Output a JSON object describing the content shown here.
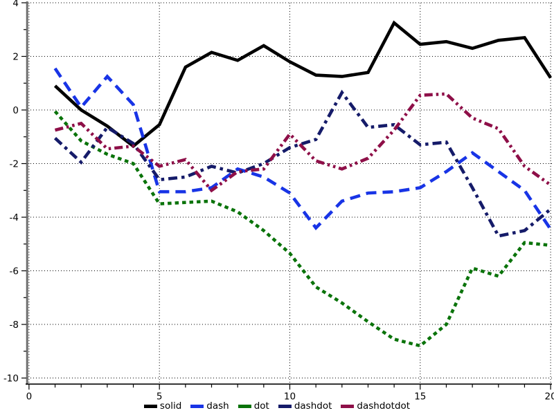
{
  "chart_data": {
    "type": "line",
    "title": "",
    "xlabel": "",
    "ylabel": "",
    "xlim": [
      -0.05,
      20.05
    ],
    "ylim": [
      -10.2,
      4.0
    ],
    "x_major_ticks": [
      0,
      5,
      10,
      15,
      20
    ],
    "x_minor_ticks": [
      1,
      2,
      3,
      4,
      6,
      7,
      8,
      9,
      11,
      12,
      13,
      14,
      16,
      17,
      18,
      19
    ],
    "y_major_ticks": [
      4,
      2,
      0,
      -2,
      -4,
      -6,
      -8,
      -10
    ],
    "y_minor_ticks": [
      3,
      1,
      -1,
      -3,
      -5,
      -7,
      -9
    ],
    "grid": "dotted lines at major ticks",
    "legend_position": "bottom-center",
    "axis_colors": {
      "y_axis_line": "#6e6e6e",
      "x_axis_line": "#000000",
      "grid": "#000000"
    },
    "x": [
      1,
      2,
      3,
      4,
      5,
      6,
      7,
      8,
      9,
      10,
      11,
      12,
      13,
      14,
      15,
      16,
      17,
      18,
      19,
      20
    ],
    "series": [
      {
        "name": "solid",
        "color": "#000000",
        "dash": "solid",
        "values": [
          0.9,
          0.0,
          -0.6,
          -1.35,
          -0.55,
          1.6,
          2.15,
          1.85,
          2.4,
          1.8,
          1.3,
          1.25,
          1.4,
          3.25,
          2.45,
          2.55,
          2.3,
          2.6,
          2.7,
          1.2
        ]
      },
      {
        "name": "dash",
        "color": "#1834e6",
        "dash": "dash",
        "values": [
          1.55,
          0.1,
          1.25,
          0.2,
          -3.05,
          -3.05,
          -2.9,
          -2.2,
          -2.5,
          -3.1,
          -4.4,
          -3.4,
          -3.1,
          -3.05,
          -2.9,
          -2.3,
          -1.6,
          -2.3,
          -3.0,
          -4.45
        ]
      },
      {
        "name": "dot",
        "color": "#0a730a",
        "dash": "dot",
        "values": [
          -0.05,
          -1.15,
          -1.65,
          -2.0,
          -3.5,
          -3.45,
          -3.4,
          -3.8,
          -4.5,
          -5.35,
          -6.6,
          -7.2,
          -7.9,
          -8.55,
          -8.8,
          -8.0,
          -5.9,
          -6.2,
          -4.95,
          -5.05
        ]
      },
      {
        "name": "dashdot",
        "color": "#151b69",
        "dash": "dashdot",
        "values": [
          -1.05,
          -1.95,
          -0.65,
          -1.25,
          -2.6,
          -2.5,
          -2.1,
          -2.35,
          -2.0,
          -1.4,
          -1.1,
          0.65,
          -0.65,
          -0.55,
          -1.3,
          -1.2,
          -2.9,
          -4.7,
          -4.5,
          -3.7
        ]
      },
      {
        "name": "dashdotdot",
        "color": "#8e0f48",
        "dash": "dashdotdot",
        "values": [
          -0.75,
          -0.5,
          -1.45,
          -1.35,
          -2.1,
          -1.85,
          -3.0,
          -2.3,
          -2.2,
          -0.9,
          -1.9,
          -2.2,
          -1.8,
          -0.75,
          0.55,
          0.6,
          -0.3,
          -0.7,
          -2.1,
          -2.8
        ]
      }
    ]
  }
}
